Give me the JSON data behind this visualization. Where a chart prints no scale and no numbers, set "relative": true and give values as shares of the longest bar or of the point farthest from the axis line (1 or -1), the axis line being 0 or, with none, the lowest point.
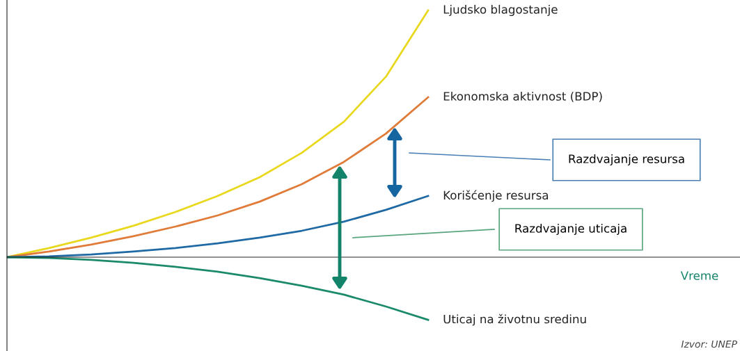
{
  "chart_data": {
    "type": "line",
    "relative": true,
    "categories": [
      null,
      null,
      null,
      null,
      null,
      null,
      null,
      null,
      null,
      null,
      null
    ],
    "series": [
      {
        "name": "Ljudsko blagostanje",
        "color": "#e8d81e",
        "values": [
          0,
          0.037,
          0.079,
          0.127,
          0.183,
          0.248,
          0.324,
          0.423,
          0.549,
          0.732,
          1
        ]
      },
      {
        "name": "Ekonomska aktivnost (BDP)",
        "color": "#e07b39",
        "values": [
          0,
          0.023,
          0.051,
          0.085,
          0.124,
          0.169,
          0.225,
          0.296,
          0.386,
          0.501,
          0.648
        ]
      },
      {
        "name": "Korišćenje resursa",
        "color": "#1f6aa5",
        "values": [
          0,
          0.003,
          0.011,
          0.023,
          0.037,
          0.056,
          0.079,
          0.107,
          0.144,
          0.192,
          0.248
        ]
      },
      {
        "name": "Uticaj na životnu sredinu",
        "color": "#1a8a6a",
        "values": [
          0,
          -0.003,
          -0.011,
          -0.023,
          -0.039,
          -0.059,
          -0.085,
          -0.116,
          -0.152,
          -0.2,
          -0.254
        ]
      }
    ],
    "annotations": [
      "Razdvajanje resursa",
      "Razdvajanje uticaja",
      "Izvor: UNEP",
      "Vreme"
    ],
    "legend": false,
    "marker": "none",
    "line_style": "solid"
  }
}
